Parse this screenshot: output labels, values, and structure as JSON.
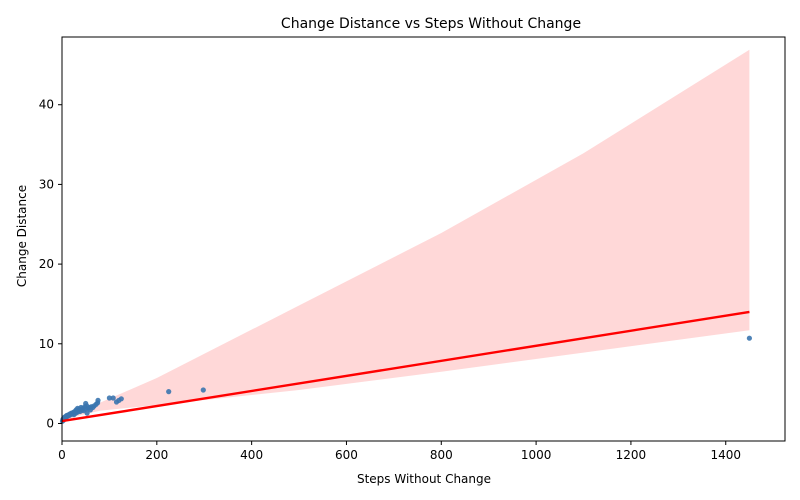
{
  "chart_data": {
    "type": "scatter",
    "title": "Change Distance vs Steps Without Change",
    "xlabel": "Steps Without Change",
    "ylabel": "Change Distance",
    "xlim": [
      0,
      1525
    ],
    "ylim": [
      -2.2,
      48.5
    ],
    "xticks": [
      0,
      200,
      400,
      600,
      800,
      1000,
      1200,
      1400
    ],
    "yticks": [
      0,
      10,
      20,
      30,
      40
    ],
    "grid": false,
    "colors": {
      "points": "#3b75af",
      "fit_line": "#ff0000",
      "confidence_band": "#ffd6d6"
    },
    "points": [
      {
        "x": 1,
        "y": 0.3
      },
      {
        "x": 2,
        "y": 0.5
      },
      {
        "x": 3,
        "y": 0.6
      },
      {
        "x": 3,
        "y": 0.4
      },
      {
        "x": 4,
        "y": 0.7
      },
      {
        "x": 5,
        "y": 0.6
      },
      {
        "x": 6,
        "y": 0.8
      },
      {
        "x": 7,
        "y": 0.7
      },
      {
        "x": 8,
        "y": 0.9
      },
      {
        "x": 9,
        "y": 0.8
      },
      {
        "x": 10,
        "y": 1.0
      },
      {
        "x": 11,
        "y": 0.9
      },
      {
        "x": 12,
        "y": 1.0
      },
      {
        "x": 14,
        "y": 1.1
      },
      {
        "x": 15,
        "y": 1.0
      },
      {
        "x": 17,
        "y": 1.2
      },
      {
        "x": 18,
        "y": 1.1
      },
      {
        "x": 20,
        "y": 1.3
      },
      {
        "x": 22,
        "y": 1.2
      },
      {
        "x": 24,
        "y": 1.4
      },
      {
        "x": 25,
        "y": 1.1
      },
      {
        "x": 27,
        "y": 1.5
      },
      {
        "x": 29,
        "y": 1.3
      },
      {
        "x": 30,
        "y": 1.7
      },
      {
        "x": 32,
        "y": 1.4
      },
      {
        "x": 33,
        "y": 1.9
      },
      {
        "x": 35,
        "y": 1.6
      },
      {
        "x": 37,
        "y": 1.8
      },
      {
        "x": 38,
        "y": 1.5
      },
      {
        "x": 40,
        "y": 2.0
      },
      {
        "x": 42,
        "y": 1.7
      },
      {
        "x": 44,
        "y": 1.9
      },
      {
        "x": 45,
        "y": 1.6
      },
      {
        "x": 48,
        "y": 2.1
      },
      {
        "x": 50,
        "y": 1.8
      },
      {
        "x": 50,
        "y": 2.5
      },
      {
        "x": 52,
        "y": 2.2
      },
      {
        "x": 53,
        "y": 1.3
      },
      {
        "x": 55,
        "y": 1.9
      },
      {
        "x": 58,
        "y": 2.0
      },
      {
        "x": 60,
        "y": 1.7
      },
      {
        "x": 62,
        "y": 2.1
      },
      {
        "x": 65,
        "y": 2.0
      },
      {
        "x": 68,
        "y": 2.2
      },
      {
        "x": 72,
        "y": 2.4
      },
      {
        "x": 75,
        "y": 2.6
      },
      {
        "x": 76,
        "y": 2.9
      },
      {
        "x": 100,
        "y": 3.2
      },
      {
        "x": 108,
        "y": 3.2
      },
      {
        "x": 115,
        "y": 2.7
      },
      {
        "x": 120,
        "y": 2.9
      },
      {
        "x": 125,
        "y": 3.1
      },
      {
        "x": 225,
        "y": 4.0
      },
      {
        "x": 298,
        "y": 4.2
      },
      {
        "x": 1450,
        "y": 10.7
      }
    ],
    "fit_line": {
      "x": [
        0,
        1450
      ],
      "y": [
        0.3,
        14.0
      ]
    },
    "confidence_band": {
      "x": [
        0,
        30,
        80,
        200,
        500,
        800,
        1100,
        1450
      ],
      "lower": [
        0.0,
        0.9,
        1.6,
        2.3,
        4.2,
        6.5,
        8.9,
        11.7
      ],
      "upper": [
        0.6,
        1.3,
        2.6,
        5.7,
        14.8,
        23.9,
        33.9,
        46.9
      ]
    }
  }
}
